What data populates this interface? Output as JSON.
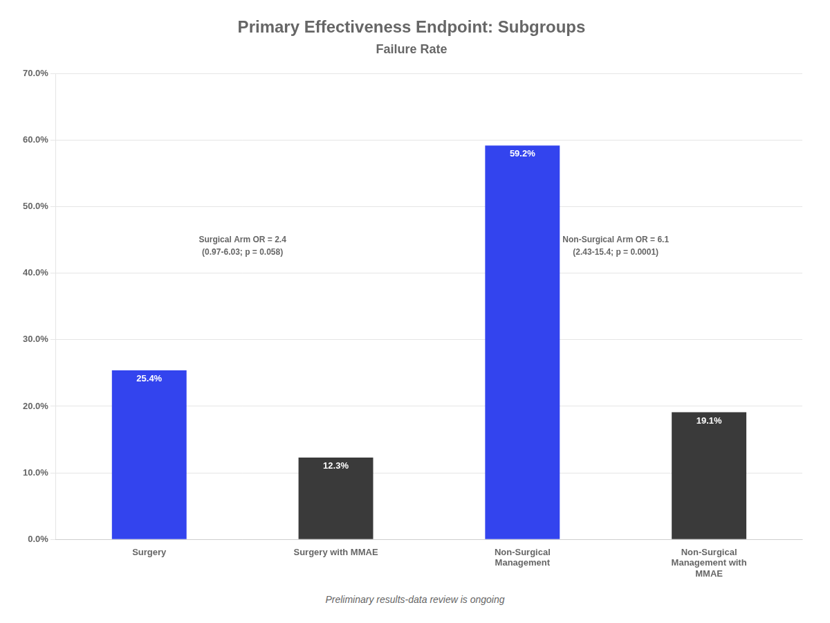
{
  "chart_data": {
    "type": "bar",
    "title": "Primary Effectiveness Endpoint: Subgroups",
    "subtitle": "Failure Rate",
    "categories": [
      "Surgery",
      "Surgery with MMAE",
      "Non-Surgical\nManagement",
      "Non-Surgical\nManagement with\nMMAE"
    ],
    "values": [
      25.4,
      12.3,
      59.2,
      19.1
    ],
    "colors": [
      "#3344ee",
      "#3a3a3a",
      "#3344ee",
      "#3a3a3a"
    ],
    "data_labels": true,
    "value_labels": [
      "25.4%",
      "12.3%",
      "59.2%",
      "19.1%"
    ],
    "ylim": [
      0,
      70
    ],
    "yticks": [
      {
        "value": 0,
        "label": "0.0%"
      },
      {
        "value": 10,
        "label": "10.0%"
      },
      {
        "value": 20,
        "label": "20.0%"
      },
      {
        "value": 30,
        "label": "30.0%"
      },
      {
        "value": 40,
        "label": "40.0%"
      },
      {
        "value": 50,
        "label": "50.0%"
      },
      {
        "value": 60,
        "label": "60.0%"
      },
      {
        "value": 70,
        "label": "70.0%"
      }
    ],
    "grid": true,
    "annotations": [
      "Surgical Arm OR = 2.4\n(0.97-6.03; p = 0.058)",
      "Non-Surgical Arm OR = 6.1\n(2.43-15.4; p = 0.0001)"
    ],
    "footnote": "Preliminary results-data review is ongoing"
  }
}
